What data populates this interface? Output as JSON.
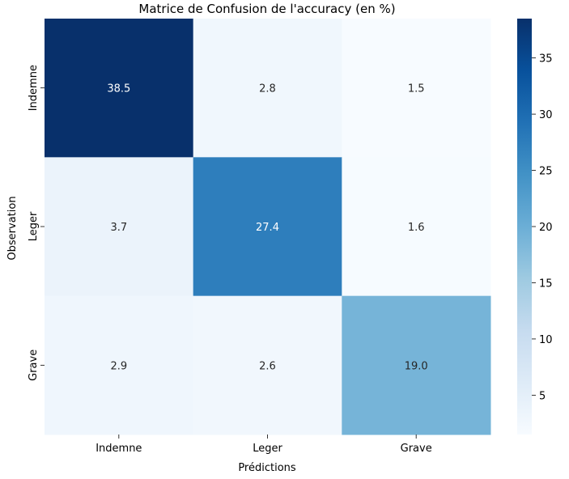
{
  "chart_data": {
    "type": "heatmap",
    "title": "Matrice de Confusion de l'accuracy (en %)",
    "xlabel": "Prédictions",
    "ylabel": "Observation",
    "x_categories": [
      "Indemne",
      "Leger",
      "Grave"
    ],
    "y_categories": [
      "Indemne",
      "Leger",
      "Grave"
    ],
    "values": [
      [
        38.5,
        2.8,
        1.5
      ],
      [
        3.7,
        27.4,
        1.6
      ],
      [
        2.9,
        2.6,
        19.0
      ]
    ],
    "cell_labels": [
      [
        "38.5",
        "2.8",
        "1.5"
      ],
      [
        "3.7",
        "27.4",
        "1.6"
      ],
      [
        "2.9",
        "2.6",
        "19.0"
      ]
    ],
    "colormap": "Blues",
    "color_range": [
      1.5,
      38.5
    ],
    "colorbar_ticks": [
      5,
      10,
      15,
      20,
      25,
      30,
      35
    ],
    "colorbar_tick_labels": [
      "5",
      "10",
      "15",
      "20",
      "25",
      "30",
      "35"
    ]
  }
}
